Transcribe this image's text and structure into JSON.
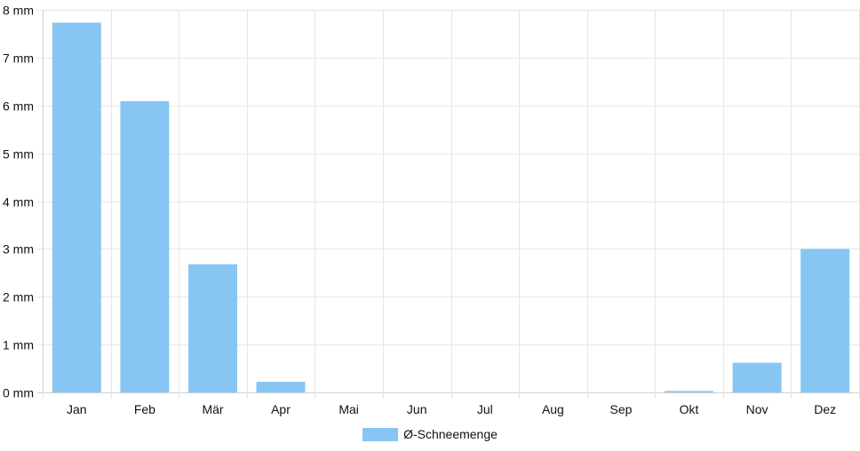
{
  "chart_data": {
    "type": "bar",
    "categories": [
      "Jan",
      "Feb",
      "Mär",
      "Apr",
      "Mai",
      "Jun",
      "Jul",
      "Aug",
      "Sep",
      "Okt",
      "Nov",
      "Dez"
    ],
    "series": [
      {
        "name": "Ø-Schneemenge",
        "values": [
          7.73,
          6.09,
          2.68,
          0.22,
          0,
          0,
          0,
          0,
          0,
          0.03,
          0.62,
          3.0
        ],
        "color": "#87c6f3"
      }
    ],
    "y_ticks": [
      "0 mm",
      "1 mm",
      "2 mm",
      "3 mm",
      "4 mm",
      "5 mm",
      "6 mm",
      "7 mm",
      "8 mm"
    ],
    "ylim": [
      0,
      8
    ],
    "y_unit": "mm",
    "grid": true,
    "legend_position": "bottom"
  }
}
